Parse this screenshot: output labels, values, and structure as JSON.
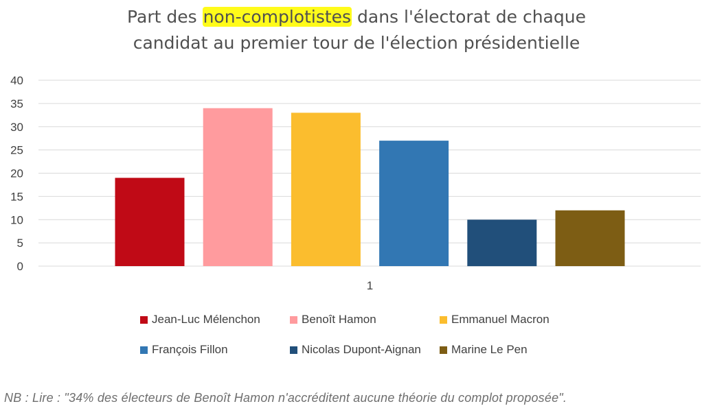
{
  "title_parts": {
    "before": "Part des ",
    "highlight": "non-complotistes",
    "after": " dans l'électorat de chaque",
    "line2": "candidat au premier tour de l'élection présidentielle"
  },
  "colors": {
    "highlight": "#fffb1a",
    "gridline": "#d9d9d9"
  },
  "chart_data": {
    "type": "bar",
    "title": "Part des non-complotistes dans l'électorat de chaque candidat au premier tour de l'élection présidentielle",
    "categories": [
      "1"
    ],
    "ylim": [
      0,
      40
    ],
    "yticks": [
      0,
      5,
      10,
      15,
      20,
      25,
      30,
      35,
      40
    ],
    "grid": true,
    "legend_position": "bottom",
    "series": [
      {
        "name": "Jean-Luc Mélenchon",
        "values": [
          19
        ],
        "color": "#c00a16"
      },
      {
        "name": "Benoît Hamon",
        "values": [
          34
        ],
        "color": "#ff9b9e"
      },
      {
        "name": "Emmanuel Macron",
        "values": [
          33
        ],
        "color": "#fbbd2e"
      },
      {
        "name": "François Fillon",
        "values": [
          27
        ],
        "color": "#3277b3"
      },
      {
        "name": "Nicolas Dupont-Aignan",
        "values": [
          10
        ],
        "color": "#214f7a"
      },
      {
        "name": "Marine Le Pen",
        "values": [
          12
        ],
        "color": "#7d5d14"
      }
    ]
  },
  "footnote": "NB : Lire : \"34% des électeurs de Benoît Hamon n'accréditent aucune théorie du complot proposée\"."
}
